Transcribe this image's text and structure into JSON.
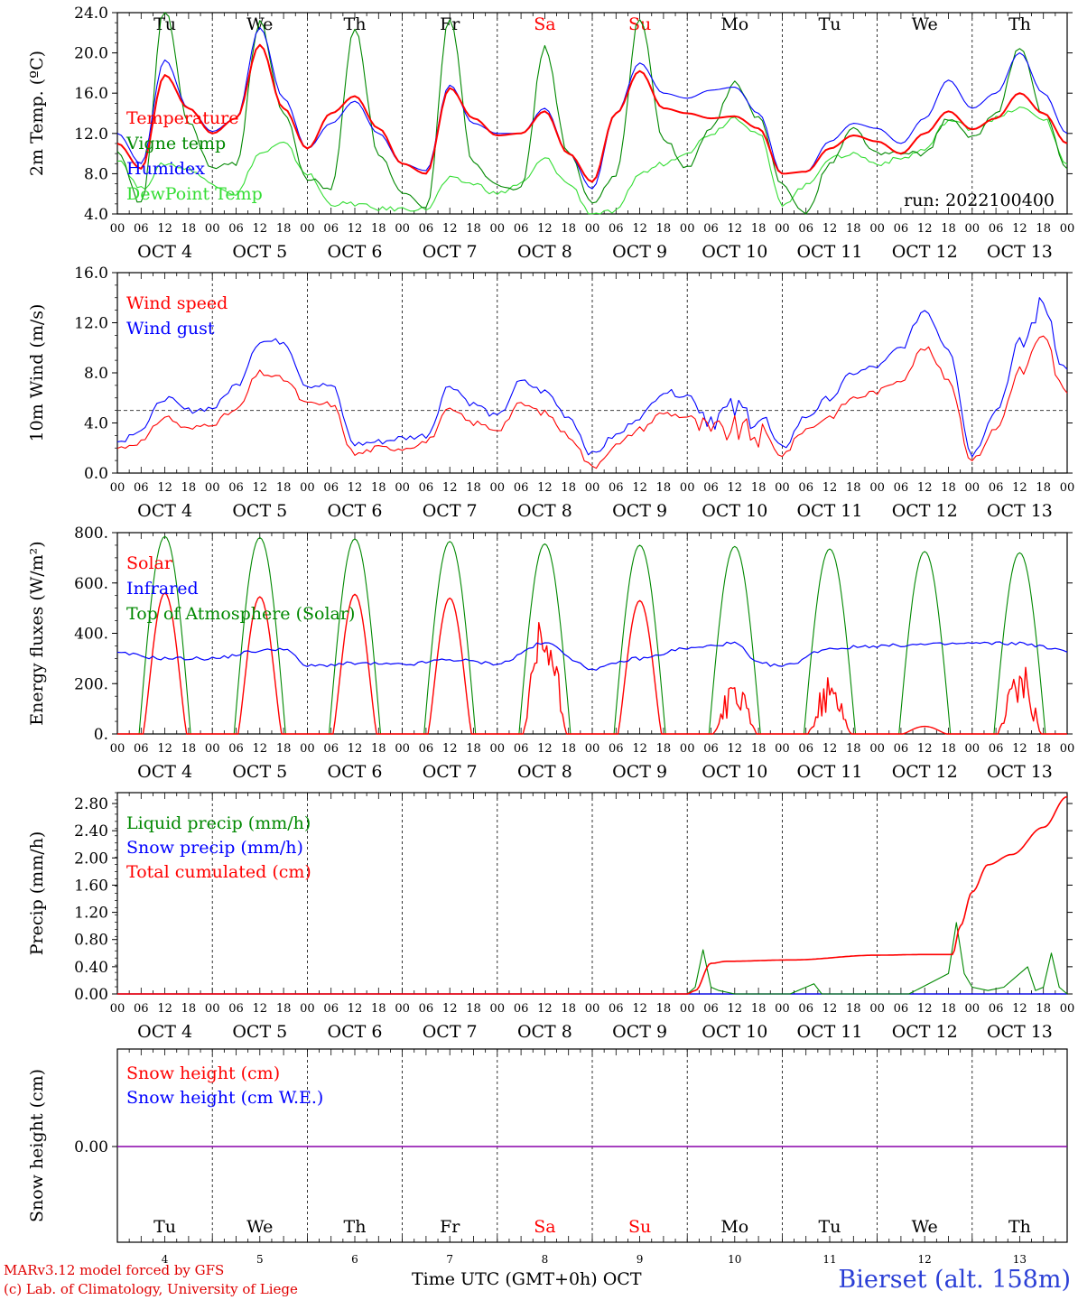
{
  "meta": {
    "run_label": "run: 2022100400"
  },
  "days": {
    "weekdays": [
      "Tu",
      "We",
      "Th",
      "Fr",
      "Sa",
      "Su",
      "Mo",
      "Tu",
      "We",
      "Th"
    ],
    "weekend_idx": [
      4,
      5
    ],
    "dates": [
      "OCT  4",
      "OCT  5",
      "OCT  6",
      "OCT  7",
      "OCT  8",
      "OCT  9",
      "OCT 10",
      "OCT 11",
      "OCT 12",
      "OCT 13"
    ],
    "day_numbers": [
      "4",
      "5",
      "6",
      "7",
      "8",
      "9",
      "10",
      "11",
      "12",
      "13"
    ],
    "hour_labels": [
      "00",
      "06",
      "12",
      "18"
    ],
    "end_label": "00"
  },
  "colors": {
    "red": "#ff0000",
    "green": "#008800",
    "lightgreen": "#33dd33",
    "blue": "#0000ff",
    "purple": "#8800aa",
    "weekend": "#ff0000"
  },
  "footer": {
    "model": "MARv3.12 model forced by GFS",
    "lab": "(c) Lab. of Climatology, University of Liege",
    "axis": "Time UTC (GMT+0h) OCT",
    "station": "Bierset (alt. 158m)"
  },
  "chart_data": [
    {
      "type": "line",
      "ylabel": "2m Temp. (ºC)",
      "ylim": [
        4,
        24
      ],
      "yticks": [
        "4.0",
        "8.0",
        "12.0",
        "16.0",
        "20.0",
        "24.0"
      ],
      "yticks_v": [
        4,
        8,
        12,
        16,
        20,
        24
      ],
      "legend": [
        {
          "name": "Temperature",
          "color": "red"
        },
        {
          "name": "Vigne temp",
          "color": "green"
        },
        {
          "name": "Humidex",
          "color": "blue"
        },
        {
          "name": "DewPoint Temp",
          "color": "lightgreen"
        }
      ],
      "x": [
        0,
        6,
        12,
        18,
        24,
        30,
        36,
        42,
        48,
        54,
        60,
        66,
        72,
        78,
        84,
        90,
        96,
        102,
        108,
        114,
        120,
        126,
        132,
        138,
        144,
        150,
        156,
        162,
        168,
        174,
        180,
        186,
        192,
        198,
        204,
        210,
        216,
        222,
        228,
        234,
        240
      ],
      "series": [
        {
          "name": "Temperature",
          "color": "red",
          "values": [
            11,
            8.5,
            17.8,
            14.5,
            12,
            13.5,
            20.8,
            14.5,
            10.5,
            14,
            15.7,
            12.5,
            9,
            8,
            16.5,
            13.5,
            11.8,
            12,
            14.2,
            10,
            7.2,
            14,
            18.2,
            14.5,
            14,
            13.5,
            13.7,
            12.5,
            8,
            8.2,
            10.5,
            11.8,
            11.2,
            10,
            12,
            14.2,
            12.4,
            13.5,
            16,
            14,
            11
          ]
        },
        {
          "name": "Vigne temp",
          "color": "green",
          "values": [
            10,
            5,
            24.5,
            13,
            8.5,
            9,
            23,
            14,
            7.5,
            6.5,
            22.5,
            10,
            6,
            4.5,
            23.5,
            9,
            7,
            6.5,
            20.5,
            10,
            5,
            8,
            23.5,
            11.5,
            8.5,
            12.5,
            17,
            13.5,
            7,
            4,
            9,
            12.5,
            10,
            10,
            10,
            13.5,
            11.5,
            14,
            20.5,
            14,
            8.5
          ]
        },
        {
          "name": "Humidex",
          "color": "blue",
          "values": [
            12,
            9,
            19.3,
            14.5,
            12.2,
            13.5,
            22.5,
            15.5,
            10.5,
            13,
            15.2,
            12,
            9,
            8.3,
            16.8,
            13,
            12,
            12,
            14.5,
            10,
            6.5,
            14,
            19,
            16,
            15.5,
            16.3,
            16.6,
            14,
            8,
            8.2,
            11.2,
            13,
            12.5,
            11,
            13.5,
            17.3,
            14.5,
            16,
            20,
            16,
            12
          ]
        },
        {
          "name": "DewPoint Temp",
          "color": "lightgreen",
          "values": [
            9.5,
            6.5,
            9,
            8.5,
            7,
            6,
            10,
            11,
            8,
            5,
            5,
            4.5,
            4.5,
            4.5,
            7.5,
            7,
            6,
            7,
            9.5,
            7,
            4,
            4.2,
            8,
            9,
            10.2,
            12,
            13.6,
            12,
            5,
            6.8,
            9.5,
            10,
            9,
            9.5,
            10.4,
            13.3,
            12.5,
            13.5,
            14.5,
            13.5,
            9
          ]
        }
      ]
    },
    {
      "type": "line",
      "ylabel": "10m Wind (m/s)",
      "ylim": [
        0,
        16
      ],
      "yticks": [
        "0.0",
        "4.0",
        "8.0",
        "12.0",
        "16.0"
      ],
      "yticks_v": [
        0,
        4,
        8,
        12,
        16
      ],
      "reference_line": 5,
      "legend": [
        {
          "name": "Wind speed",
          "color": "red"
        },
        {
          "name": "Wind gust",
          "color": "blue"
        }
      ],
      "x": [
        0,
        6,
        12,
        18,
        24,
        30,
        36,
        42,
        48,
        54,
        60,
        66,
        72,
        78,
        84,
        90,
        96,
        102,
        108,
        114,
        120,
        126,
        132,
        138,
        144,
        150,
        156,
        162,
        168,
        174,
        180,
        186,
        192,
        198,
        204,
        210,
        216,
        222,
        228,
        234,
        240
      ],
      "series": [
        {
          "name": "Wind speed",
          "color": "red",
          "values": [
            2,
            2.5,
            4.5,
            3.5,
            4,
            5,
            8,
            7.5,
            5.5,
            5.5,
            1.5,
            2,
            2,
            2.5,
            5,
            4,
            3.5,
            5.5,
            4.8,
            3,
            0.5,
            2.2,
            3.5,
            4.8,
            4.5,
            3.2,
            3.5,
            3,
            1.5,
            3.5,
            4.5,
            6,
            6.5,
            7.5,
            10,
            7.5,
            1,
            3.5,
            8,
            10.5,
            6
          ]
        },
        {
          "name": "Wind gust",
          "color": "blue",
          "values": [
            2.5,
            3.5,
            6,
            5,
            5.2,
            7,
            10.5,
            10.5,
            7,
            7,
            2.3,
            2.5,
            2.8,
            3,
            7,
            5.5,
            4.5,
            7.3,
            6.5,
            4.5,
            1.5,
            3,
            4.5,
            6.5,
            6.2,
            4.5,
            5,
            4.5,
            2,
            4.5,
            6,
            8,
            8.5,
            10,
            13,
            10,
            1.5,
            5,
            10,
            13.5,
            8
          ]
        }
      ]
    },
    {
      "type": "line",
      "ylabel": "Energy fluxes (W/m²)",
      "ylim": [
        0,
        800
      ],
      "yticks": [
        "0.",
        "200.",
        "400.",
        "600.",
        "800."
      ],
      "yticks_v": [
        0,
        200,
        400,
        600,
        800
      ],
      "legend": [
        {
          "name": "Solar",
          "color": "red"
        },
        {
          "name": "Infrared",
          "color": "blue"
        },
        {
          "name": "Top of Atmosphere (Solar)",
          "color": "green"
        }
      ],
      "toa_peaks": [
        785,
        780,
        775,
        765,
        755,
        750,
        745,
        735,
        725,
        720
      ],
      "solar_peaks": [
        560,
        545,
        555,
        540,
        500,
        530,
        220,
        230,
        30,
        300
      ],
      "infrared": {
        "x": [
          0,
          12,
          24,
          36,
          42,
          48,
          60,
          72,
          84,
          96,
          108,
          120,
          132,
          144,
          156,
          162,
          168,
          180,
          192,
          204,
          216,
          228,
          240
        ],
        "values": [
          320,
          300,
          300,
          330,
          340,
          270,
          280,
          275,
          295,
          280,
          360,
          260,
          300,
          340,
          360,
          280,
          270,
          340,
          350,
          355,
          360,
          360,
          330
        ]
      }
    },
    {
      "type": "line",
      "ylabel": "Precip (mm/h)",
      "ylim": [
        0,
        2.96
      ],
      "yticks": [
        "0.00",
        "0.40",
        "0.80",
        "1.20",
        "1.60",
        "2.00",
        "2.40",
        "2.80"
      ],
      "yticks_v": [
        0,
        0.4,
        0.8,
        1.2,
        1.6,
        2.0,
        2.4,
        2.8
      ],
      "legend": [
        {
          "name": "Liquid precip (mm/h)",
          "color": "green"
        },
        {
          "name": "Snow precip (mm/h)",
          "color": "blue"
        },
        {
          "name": "Total cumulated (cm)",
          "color": "red"
        }
      ],
      "series": [
        {
          "name": "Total cumulated (cm)",
          "color": "red",
          "x": [
            0,
            144,
            146,
            150,
            154,
            170,
            192,
            204,
            211,
            213,
            216,
            220,
            226,
            234,
            240
          ],
          "values": [
            0,
            0,
            0.05,
            0.45,
            0.48,
            0.5,
            0.57,
            0.58,
            0.58,
            1.0,
            1.5,
            1.9,
            2.05,
            2.45,
            2.9
          ]
        },
        {
          "name": "Liquid precip (mm/h)",
          "color": "green",
          "x": [
            0,
            144,
            146,
            148,
            150,
            152,
            156,
            170,
            176,
            178,
            180,
            200,
            210,
            212,
            214,
            216,
            220,
            224,
            230,
            232,
            234,
            236,
            238,
            240
          ],
          "values": [
            0,
            0,
            0.1,
            0.65,
            0.1,
            0.05,
            0,
            0,
            0.15,
            0,
            0,
            0,
            0.3,
            1.05,
            0.3,
            0.1,
            0.05,
            0.1,
            0.4,
            0.05,
            0.1,
            0.6,
            0.1,
            0
          ]
        },
        {
          "name": "Snow precip (mm/h)",
          "color": "blue",
          "x": [
            0,
            240
          ],
          "values": [
            0,
            0
          ]
        }
      ]
    },
    {
      "type": "line",
      "ylabel": "Snow height (cm)",
      "yticks": [
        "0.00"
      ],
      "legend": [
        {
          "name": "Snow height (cm)",
          "color": "red"
        },
        {
          "name": "Snow height (cm W.E.)",
          "color": "blue"
        }
      ],
      "series": [
        {
          "name": "Snow height (cm)",
          "color": "purple",
          "x": [
            0,
            240
          ],
          "values": [
            0,
            0
          ]
        }
      ]
    }
  ]
}
